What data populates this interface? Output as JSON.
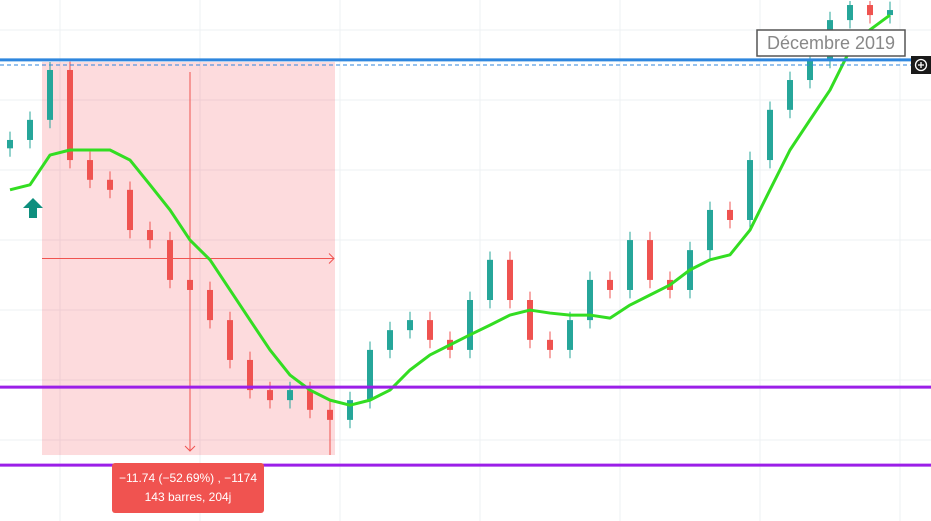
{
  "chart_data": {
    "type": "candlestick",
    "categories": [
      null,
      null,
      null,
      null,
      null,
      null,
      null,
      null,
      null,
      null,
      null,
      null,
      null,
      null,
      null,
      null,
      null,
      null,
      null,
      null,
      null,
      null,
      null,
      null,
      null,
      null,
      null,
      null,
      null,
      null,
      null,
      null,
      null,
      null,
      null,
      null,
      null,
      null,
      null,
      null,
      null,
      null,
      null,
      null,
      null
    ],
    "open": [
      19.7,
      19.95,
      20.55,
      22.04,
      19.35,
      18.76,
      18.46,
      17.26,
      16.96,
      15.77,
      15.47,
      14.57,
      13.38,
      12.48,
      12.18,
      12.48,
      11.89,
      11.59,
      12.18,
      13.68,
      14.27,
      14.57,
      13.98,
      13.68,
      15.17,
      16.37,
      15.17,
      13.98,
      13.68,
      14.57,
      15.77,
      15.47,
      16.96,
      15.77,
      15.47,
      16.66,
      17.86,
      17.56,
      19.35,
      20.85,
      21.74,
      22.34,
      23.53,
      23.98,
      23.68
    ],
    "high": [
      20.2,
      20.8,
      22.28,
      22.29,
      19.6,
      19.01,
      18.71,
      17.51,
      17.21,
      16.02,
      15.72,
      14.82,
      13.63,
      12.73,
      12.73,
      12.73,
      12.14,
      12.43,
      13.93,
      14.52,
      14.82,
      14.82,
      14.23,
      15.42,
      16.62,
      16.62,
      15.42,
      14.23,
      14.82,
      16.02,
      16.02,
      17.21,
      17.21,
      16.02,
      16.91,
      18.11,
      18.11,
      19.6,
      21.1,
      21.99,
      22.59,
      23.78,
      24.1,
      24.1,
      24.08
    ],
    "low": [
      19.45,
      19.7,
      20.3,
      19.1,
      18.51,
      18.21,
      17.01,
      16.71,
      15.52,
      15.22,
      14.32,
      13.13,
      12.23,
      11.93,
      11.93,
      11.64,
      10.54,
      11.34,
      11.93,
      13.43,
      14.02,
      13.73,
      13.43,
      13.43,
      14.92,
      14.92,
      13.73,
      13.43,
      13.43,
      14.32,
      15.22,
      15.22,
      15.52,
      15.22,
      15.22,
      16.41,
      17.31,
      17.31,
      19.1,
      20.6,
      21.49,
      22.09,
      23.28,
      23.43,
      23.43
    ],
    "close": [
      19.95,
      20.55,
      22.04,
      19.35,
      18.76,
      18.46,
      17.26,
      16.96,
      15.77,
      15.47,
      14.57,
      13.38,
      12.48,
      12.18,
      12.48,
      11.89,
      11.59,
      12.18,
      13.68,
      14.27,
      14.57,
      13.98,
      13.68,
      15.17,
      16.37,
      15.17,
      13.98,
      13.68,
      14.57,
      15.77,
      15.47,
      16.96,
      15.77,
      15.47,
      16.66,
      17.86,
      17.56,
      19.35,
      20.85,
      21.74,
      22.34,
      23.53,
      23.98,
      23.68,
      23.83
    ],
    "up_color": "#26a69a",
    "down_color": "#ef5350",
    "moving_average": {
      "color": "#33dd22",
      "values": [
        18.46,
        18.61,
        19.5,
        19.65,
        19.65,
        19.65,
        19.35,
        18.61,
        17.86,
        16.96,
        16.37,
        15.47,
        14.57,
        13.68,
        12.93,
        12.48,
        12.18,
        12.03,
        12.18,
        12.48,
        13.08,
        13.53,
        13.83,
        14.13,
        14.42,
        14.72,
        14.87,
        14.78,
        14.72,
        14.72,
        14.63,
        15.02,
        15.32,
        15.62,
        16.07,
        16.37,
        16.52,
        17.26,
        18.46,
        19.65,
        20.55,
        21.44,
        22.64,
        23.24,
        23.68
      ]
    },
    "levels": [
      {
        "value": 22.34,
        "color": "#2e86de"
      },
      {
        "value": 12.57,
        "color": "#9b1fe8"
      },
      {
        "value": 10.24,
        "color": "#9b1fe8"
      }
    ],
    "dashed_level": {
      "value": 22.19,
      "color": "#2e86de"
    },
    "measure": {
      "from": 22.28,
      "to": 10.54,
      "change": "−11.74 (−52.69%) , −1174",
      "span": "143 barres, 204j"
    },
    "date_label": "Décembre 2019",
    "ylim": [
      8.57,
      24.13
    ]
  }
}
